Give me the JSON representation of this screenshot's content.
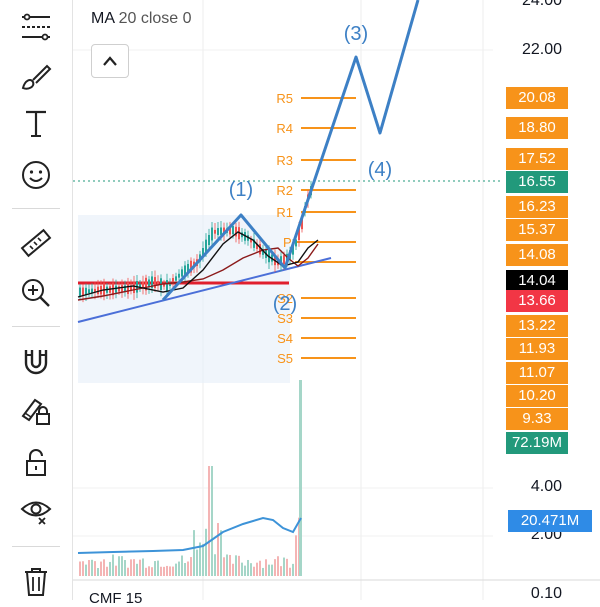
{
  "legend": {
    "name": "MA",
    "params": "20 close 0"
  },
  "cmf_label": "CMF 15",
  "axis": {
    "price_ticks": [
      "24.00",
      "22.00"
    ],
    "volume_ticks": [
      "4.00",
      "2.00"
    ],
    "cmf_tick": "0.10"
  },
  "wave_labels": [
    "(1)",
    "(2)",
    "(3)",
    "(4)"
  ],
  "pivot_levels": [
    "R5",
    "R4",
    "R3",
    "R2",
    "R1",
    "S2",
    "S3",
    "S4",
    "S5"
  ],
  "pivot_center_label": "P",
  "price_badges": [
    {
      "value": "20.08",
      "color": "#f7931a"
    },
    {
      "value": "18.80",
      "color": "#f7931a"
    },
    {
      "value": "17.52",
      "color": "#f7931a"
    },
    {
      "value": "16.55",
      "color": "#22997b"
    },
    {
      "value": "16.23",
      "color": "#f7931a"
    },
    {
      "value": "15.37",
      "color": "#f7931a"
    },
    {
      "value": "14.08",
      "color": "#f7931a"
    },
    {
      "value": "14.04",
      "color": "#000000"
    },
    {
      "value": "13.66",
      "color": "#f23645"
    },
    {
      "value": "13.22",
      "color": "#f7931a"
    },
    {
      "value": "11.93",
      "color": "#f7931a"
    },
    {
      "value": "11.07",
      "color": "#f7931a"
    },
    {
      "value": "10.20",
      "color": "#f7931a"
    },
    {
      "value": "9.33",
      "color": "#f7931a"
    },
    {
      "value": "72.19M",
      "color": "#22997b"
    }
  ],
  "cmf_badge": {
    "value": "20.471M",
    "color": "#2f8be6"
  },
  "tools": [
    "crosshair-lines-icon",
    "brush-icon",
    "text-icon",
    "emoji-icon",
    "ruler-icon",
    "zoom-in-icon",
    "magnet-icon",
    "lock-drawing-icon",
    "unlock-icon",
    "eye-icon",
    "trash-icon"
  ]
}
